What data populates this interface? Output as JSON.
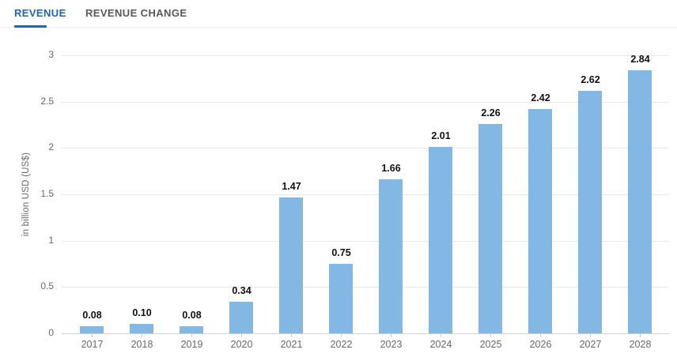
{
  "tabs": [
    {
      "id": "revenue",
      "label": "REVENUE",
      "active": true
    },
    {
      "id": "revenue-change",
      "label": "REVENUE CHANGE",
      "active": false
    }
  ],
  "colors": {
    "bar": "#83b8e5",
    "tab_active": "#1e65b2",
    "tab_inactive": "#55585c",
    "tab_divider": "#eef1f2",
    "grid_line": "#e8e8e8",
    "axis_line": "#d2d2d2",
    "tick_mark": "#cccccc",
    "axis_text": "#66696d",
    "value_label_text": "#111111"
  },
  "chart_data": {
    "type": "bar",
    "title": "",
    "categories": [
      "2017",
      "2018",
      "2019",
      "2020",
      "2021",
      "2022",
      "2023",
      "2024",
      "2025",
      "2026",
      "2027",
      "2028"
    ],
    "values": [
      0.08,
      0.1,
      0.08,
      0.34,
      1.47,
      0.75,
      1.66,
      2.01,
      2.26,
      2.42,
      2.62,
      2.84
    ],
    "value_labels": [
      "0.08",
      "0.10",
      "0.08",
      "0.34",
      "1.47",
      "0.75",
      "1.66",
      "2.01",
      "2.26",
      "2.42",
      "2.62",
      "2.84"
    ],
    "xlabel": "",
    "ylabel": "in billion USD (US$)",
    "ylim": [
      0,
      3
    ],
    "ytick_step": 0.5,
    "ytick_labels": [
      "0",
      "0.5",
      "1",
      "1.5",
      "2",
      "2.5",
      "3"
    ],
    "grid": true,
    "legend_position": "none"
  }
}
